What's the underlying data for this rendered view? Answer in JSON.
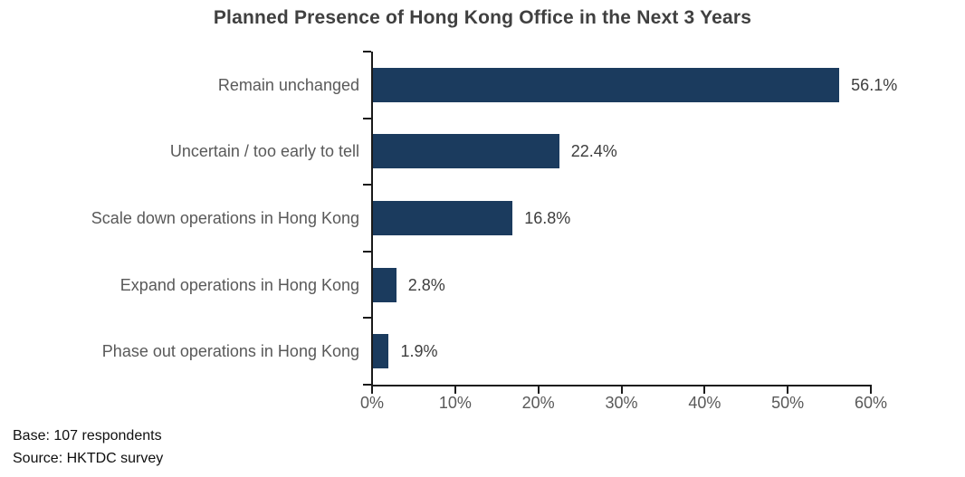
{
  "chart_data": {
    "type": "bar",
    "orientation": "horizontal",
    "title": "Planned Presence of Hong Kong Office in the Next 3 Years",
    "categories": [
      "Remain unchanged",
      "Uncertain / too early to tell",
      "Scale down operations in Hong Kong",
      "Expand operations in Hong Kong",
      "Phase out operations in Hong Kong"
    ],
    "values": [
      56.1,
      22.4,
      16.8,
      2.8,
      1.9
    ],
    "value_labels": [
      "56.1%",
      "22.4%",
      "16.8%",
      "2.8%",
      "1.9%"
    ],
    "xlabel": "",
    "ylabel": "",
    "xlim": [
      0,
      60
    ],
    "x_tick_values": [
      0,
      10,
      20,
      30,
      40,
      50,
      60
    ],
    "x_tick_labels": [
      "0%",
      "10%",
      "20%",
      "30%",
      "40%",
      "50%",
      "60%"
    ],
    "grid": false,
    "legend": false,
    "bar_color": "#1B3B5E",
    "axis_color": "#1a1a1a",
    "title_color": "#404040",
    "category_label_color": "#595959",
    "value_label_color": "#3d3d3d"
  },
  "footer": {
    "base": "Base: 107 respondents",
    "source": "Source: HKTDC survey"
  }
}
